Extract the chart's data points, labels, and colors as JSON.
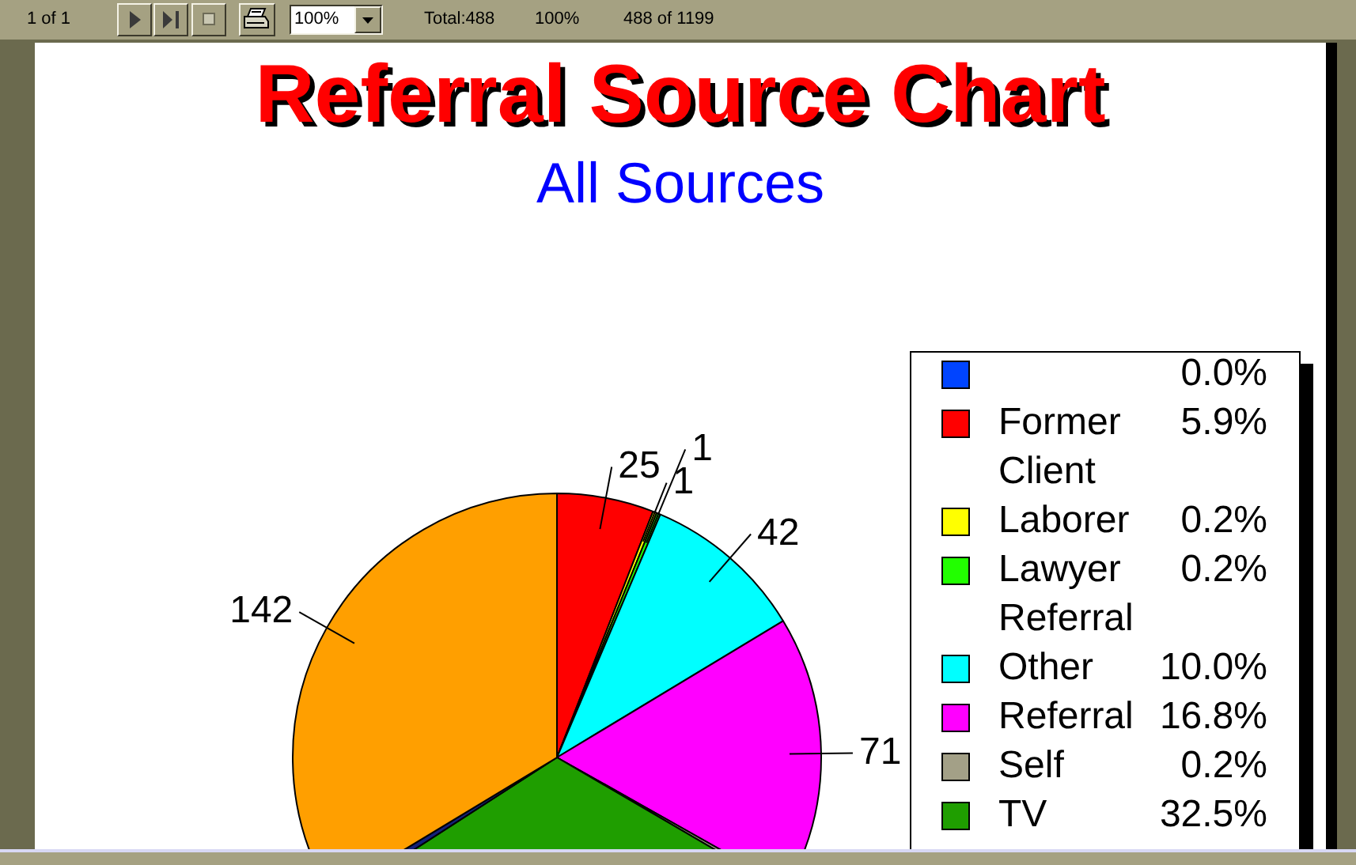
{
  "chart_data": [
    {
      "type": "other",
      "annotations": [
        "1 of 1",
        "100%",
        "Total:488",
        "100%",
        "488 of 1199"
      ]
    },
    {
      "type": "pie",
      "title": "Referral Source Chart",
      "subtitle": "All Sources",
      "categories": [
        null,
        "Former Client",
        "Laborer",
        "Lawyer Referral",
        "Other",
        "Referral",
        "Self",
        "TV",
        null,
        null
      ],
      "values": [
        0,
        25,
        1,
        1,
        42,
        71,
        1,
        137,
        2,
        142
      ],
      "value_labels": [
        null,
        "25",
        "1",
        "1",
        "42",
        "71",
        null,
        null,
        null,
        "142"
      ],
      "colors": [
        "#0044ff",
        "#ff0000",
        "#ffff00",
        "#22ff00",
        "#00ffff",
        "#ff00ff",
        "#a3a087",
        "#1f9e00",
        "#14207a",
        "#ff9f00"
      ],
      "legend": "right",
      "annotations": [
        "0.0%",
        "5.9%",
        "0.2%",
        "0.2%",
        "10.0%",
        "16.8%",
        "0.2%",
        "32.5%"
      ]
    }
  ]
}
